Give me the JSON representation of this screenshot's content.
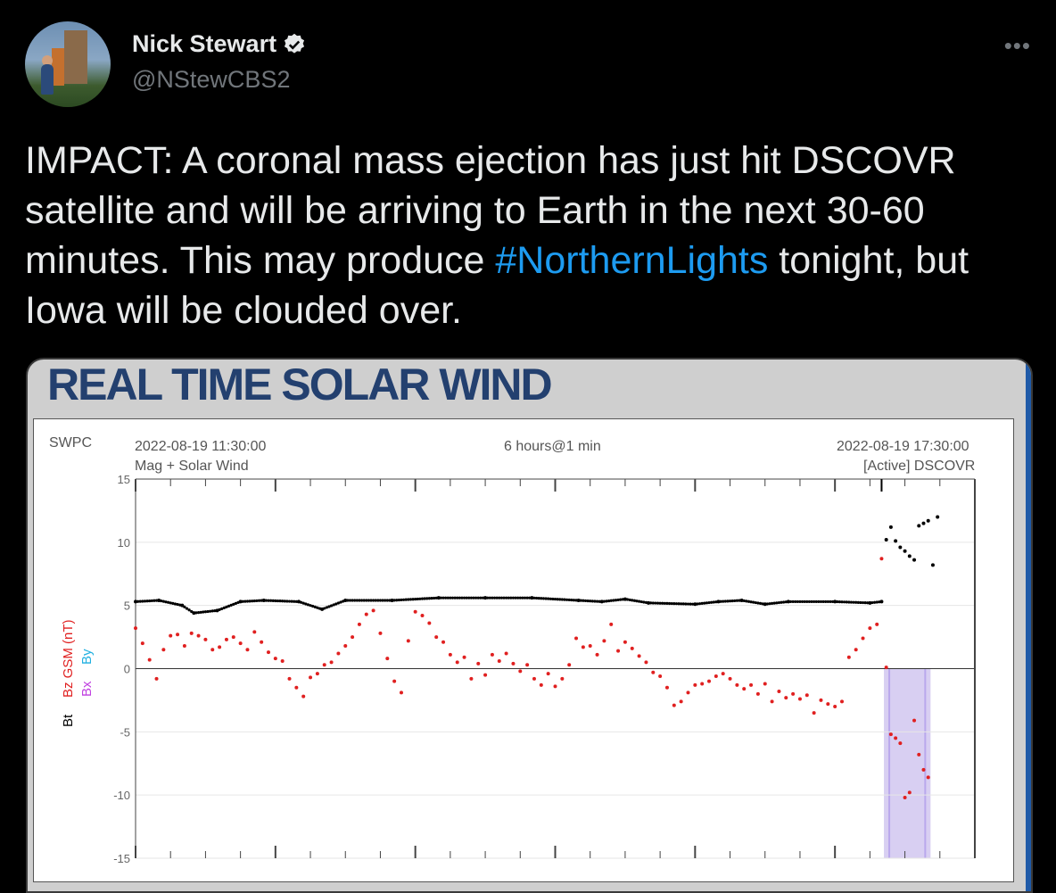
{
  "tweet": {
    "display_name": "Nick Stewart",
    "handle": "@NStewCBS2",
    "more_icon": "•••",
    "text_before": "IMPACT: A coronal mass ejection has just hit DSCOVR satellite and will be arriving to Earth in the next 30-60 minutes. This may produce ",
    "hashtag": "#NorthernLights",
    "text_after": " tonight, but Iowa will be clouded over."
  },
  "card": {
    "title": "REAL TIME SOLAR WIND"
  },
  "chart_data": {
    "type": "scatter",
    "header": {
      "source": "SWPC",
      "start_time": "2022-08-19 11:30:00",
      "span": "6 hours@1 min",
      "end_time": "2022-08-19 17:30:00",
      "panel": "Mag + Solar Wind",
      "status": "[Active] DSCOVR"
    },
    "ylabel_parts": [
      "Bt",
      "Bz GSM (nT)",
      "Bx",
      "By"
    ],
    "ylim": [
      -15,
      15
    ],
    "yticks": [
      15,
      10,
      5,
      0,
      -5,
      -10,
      -15
    ],
    "x_minutes_range": [
      0,
      360
    ],
    "shock_minutes": 320,
    "shaded_band_minutes": [
      321,
      341
    ],
    "colors": {
      "bt": "#000000",
      "bz": "#e02020",
      "shade": "#d8cff2",
      "bx": "#c040e0",
      "by": "#20b0e0"
    },
    "series": [
      {
        "name": "Bt",
        "points": [
          [
            0,
            5.3
          ],
          [
            10,
            5.4
          ],
          [
            20,
            5.0
          ],
          [
            25,
            4.4
          ],
          [
            35,
            4.6
          ],
          [
            45,
            5.3
          ],
          [
            55,
            5.4
          ],
          [
            70,
            5.3
          ],
          [
            80,
            4.7
          ],
          [
            90,
            5.4
          ],
          [
            110,
            5.4
          ],
          [
            130,
            5.6
          ],
          [
            150,
            5.6
          ],
          [
            170,
            5.6
          ],
          [
            190,
            5.4
          ],
          [
            200,
            5.3
          ],
          [
            210,
            5.5
          ],
          [
            220,
            5.2
          ],
          [
            240,
            5.1
          ],
          [
            250,
            5.3
          ],
          [
            260,
            5.4
          ],
          [
            270,
            5.1
          ],
          [
            280,
            5.3
          ],
          [
            300,
            5.3
          ],
          [
            315,
            5.2
          ],
          [
            320,
            5.3
          ],
          [
            322,
            10.2
          ],
          [
            324,
            11.2
          ],
          [
            326,
            10.1
          ],
          [
            328,
            9.6
          ],
          [
            330,
            9.3
          ],
          [
            332,
            8.9
          ],
          [
            334,
            8.6
          ],
          [
            336,
            11.3
          ],
          [
            338,
            11.5
          ],
          [
            340,
            11.7
          ],
          [
            342,
            8.2
          ],
          [
            344,
            12.0
          ]
        ]
      },
      {
        "name": "Bz GSM",
        "points": [
          [
            0,
            3.2
          ],
          [
            3,
            2.0
          ],
          [
            6,
            0.7
          ],
          [
            9,
            -0.8
          ],
          [
            12,
            1.5
          ],
          [
            15,
            2.6
          ],
          [
            18,
            2.7
          ],
          [
            21,
            1.8
          ],
          [
            24,
            2.8
          ],
          [
            27,
            2.6
          ],
          [
            30,
            2.3
          ],
          [
            33,
            1.5
          ],
          [
            36,
            1.7
          ],
          [
            39,
            2.3
          ],
          [
            42,
            2.5
          ],
          [
            45,
            2.0
          ],
          [
            48,
            1.5
          ],
          [
            51,
            2.9
          ],
          [
            54,
            2.1
          ],
          [
            57,
            1.3
          ],
          [
            60,
            0.8
          ],
          [
            63,
            0.6
          ],
          [
            66,
            -0.8
          ],
          [
            69,
            -1.5
          ],
          [
            72,
            -2.2
          ],
          [
            75,
            -0.7
          ],
          [
            78,
            -0.4
          ],
          [
            81,
            0.3
          ],
          [
            84,
            0.5
          ],
          [
            87,
            1.2
          ],
          [
            90,
            1.8
          ],
          [
            93,
            2.5
          ],
          [
            96,
            3.5
          ],
          [
            99,
            4.3
          ],
          [
            102,
            4.6
          ],
          [
            105,
            2.8
          ],
          [
            108,
            0.8
          ],
          [
            111,
            -1.0
          ],
          [
            114,
            -1.9
          ],
          [
            117,
            2.2
          ],
          [
            120,
            4.5
          ],
          [
            123,
            4.2
          ],
          [
            126,
            3.6
          ],
          [
            129,
            2.5
          ],
          [
            132,
            2.1
          ],
          [
            135,
            1.1
          ],
          [
            138,
            0.5
          ],
          [
            141,
            0.9
          ],
          [
            144,
            -0.8
          ],
          [
            147,
            0.4
          ],
          [
            150,
            -0.5
          ],
          [
            153,
            1.1
          ],
          [
            156,
            0.6
          ],
          [
            159,
            1.2
          ],
          [
            162,
            0.4
          ],
          [
            165,
            -0.2
          ],
          [
            168,
            0.3
          ],
          [
            171,
            -0.8
          ],
          [
            174,
            -1.3
          ],
          [
            177,
            -0.4
          ],
          [
            180,
            -1.4
          ],
          [
            183,
            -0.8
          ],
          [
            186,
            0.3
          ],
          [
            189,
            2.4
          ],
          [
            192,
            1.7
          ],
          [
            195,
            1.8
          ],
          [
            198,
            1.1
          ],
          [
            201,
            2.2
          ],
          [
            204,
            3.5
          ],
          [
            207,
            1.4
          ],
          [
            210,
            2.1
          ],
          [
            213,
            1.6
          ],
          [
            216,
            1.0
          ],
          [
            219,
            0.5
          ],
          [
            222,
            -0.3
          ],
          [
            225,
            -0.6
          ],
          [
            228,
            -1.5
          ],
          [
            231,
            -2.9
          ],
          [
            234,
            -2.6
          ],
          [
            237,
            -1.9
          ],
          [
            240,
            -1.3
          ],
          [
            243,
            -1.2
          ],
          [
            246,
            -1.0
          ],
          [
            249,
            -0.6
          ],
          [
            252,
            -0.4
          ],
          [
            255,
            -0.8
          ],
          [
            258,
            -1.3
          ],
          [
            261,
            -1.6
          ],
          [
            264,
            -1.3
          ],
          [
            267,
            -2.0
          ],
          [
            270,
            -1.2
          ],
          [
            273,
            -2.6
          ],
          [
            276,
            -1.8
          ],
          [
            279,
            -2.3
          ],
          [
            282,
            -2.0
          ],
          [
            285,
            -2.4
          ],
          [
            288,
            -2.1
          ],
          [
            291,
            -3.5
          ],
          [
            294,
            -2.5
          ],
          [
            297,
            -2.8
          ],
          [
            300,
            -3.0
          ],
          [
            303,
            -2.6
          ],
          [
            306,
            0.9
          ],
          [
            309,
            1.5
          ],
          [
            312,
            2.4
          ],
          [
            315,
            3.2
          ],
          [
            318,
            3.5
          ],
          [
            320,
            8.7
          ],
          [
            322,
            0.1
          ],
          [
            324,
            -5.2
          ],
          [
            326,
            -5.5
          ],
          [
            328,
            -5.9
          ],
          [
            330,
            -10.2
          ],
          [
            332,
            -9.8
          ],
          [
            334,
            -4.1
          ],
          [
            336,
            -6.8
          ],
          [
            338,
            -8.0
          ],
          [
            340,
            -8.6
          ]
        ]
      }
    ]
  }
}
